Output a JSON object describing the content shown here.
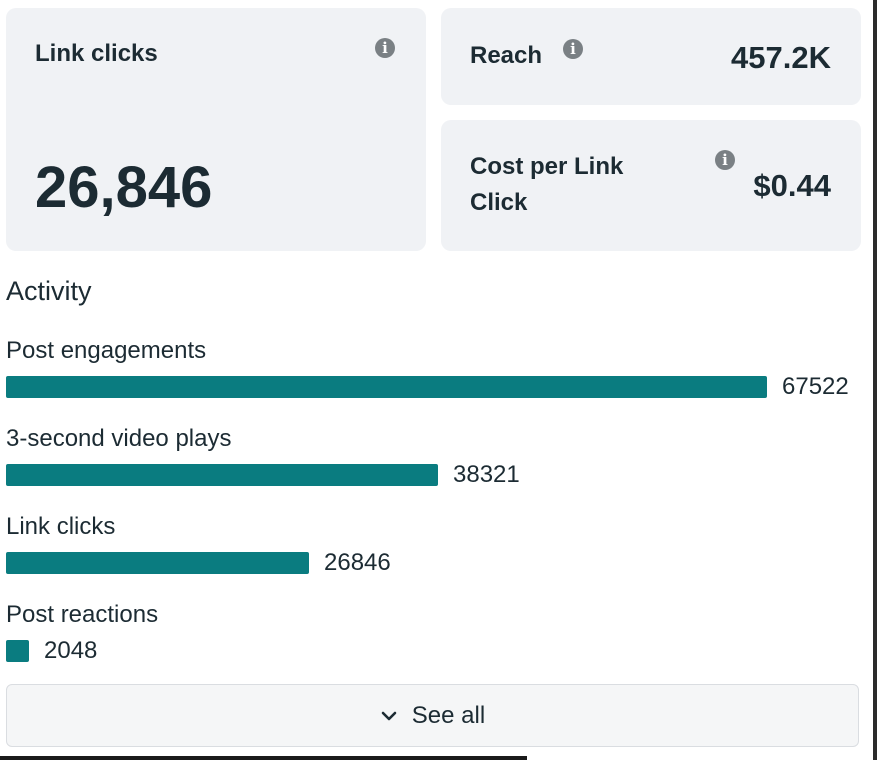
{
  "cards": {
    "link_clicks": {
      "label": "Link clicks",
      "value": "26,846"
    },
    "reach": {
      "label": "Reach",
      "value": "457.2K"
    },
    "cost_per_link_click": {
      "label_line1": "Cost per Link",
      "label_line2": "Click",
      "value": "$0.44"
    }
  },
  "activity": {
    "title": "Activity",
    "max_value": 67522,
    "items": [
      {
        "label": "Post engagements",
        "value": 67522,
        "value_text": "67522"
      },
      {
        "label": "3-second video plays",
        "value": 38321,
        "value_text": "38321"
      },
      {
        "label": "Link clicks",
        "value": 26846,
        "value_text": "26846"
      },
      {
        "label": "Post reactions",
        "value": 2048,
        "value_text": "2048"
      }
    ]
  },
  "see_all": {
    "label": "See all",
    "icon": "chevron-down-icon"
  },
  "colors": {
    "bar": "#0a7c80",
    "card_background": "#f0f2f5",
    "text": "#1c2b33",
    "info_icon": "#7a8084"
  },
  "icons": {
    "info": "info-icon"
  }
}
